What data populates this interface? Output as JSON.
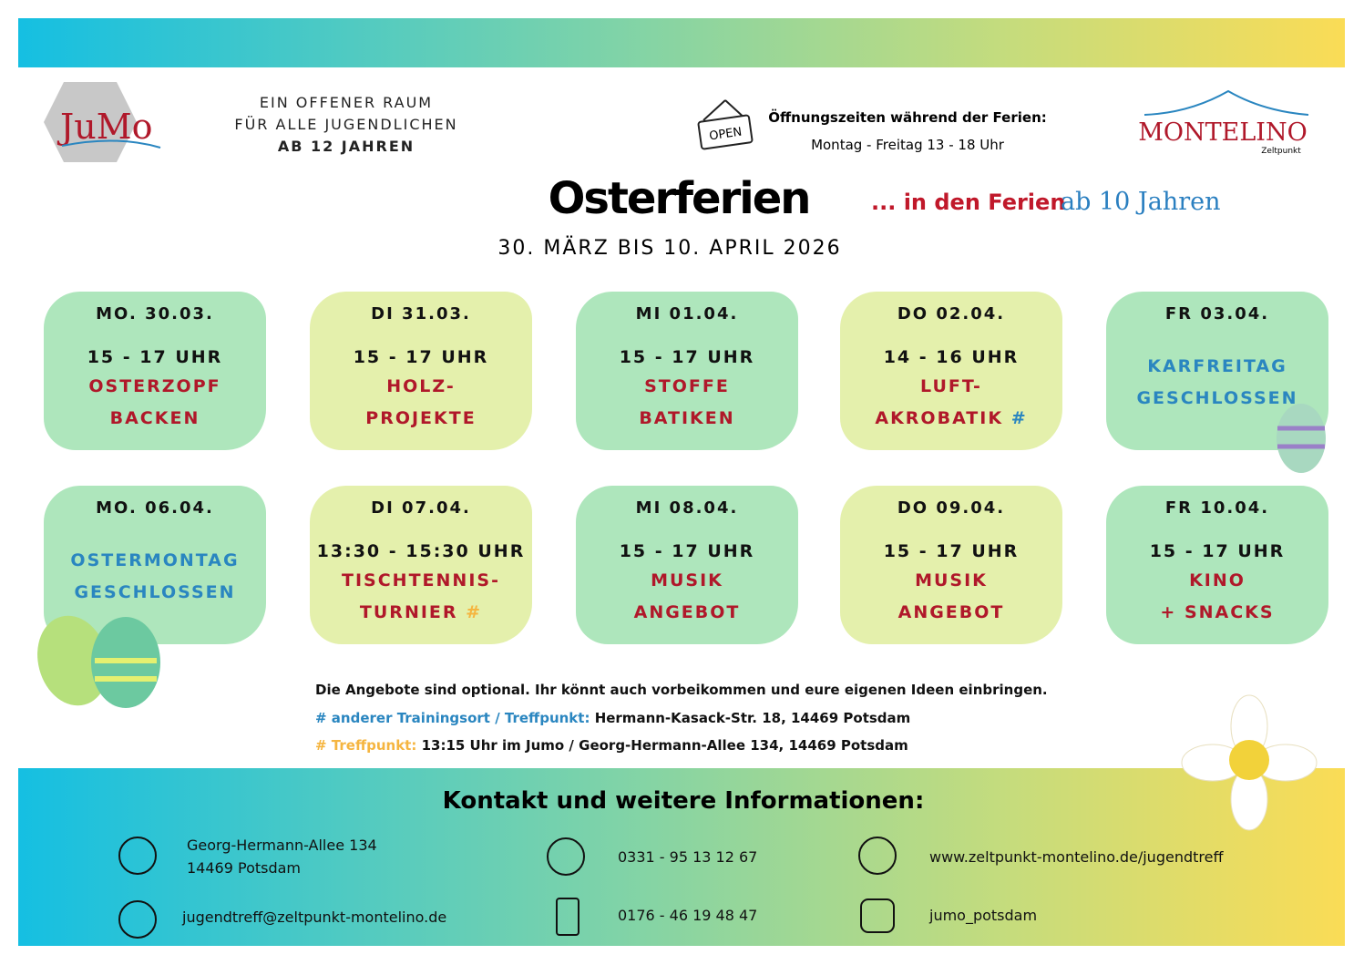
{
  "header": {
    "logo_left": "JuMo",
    "tagline": [
      "EIN OFFENER RAUM",
      "FÜR ALLE JUGENDLICHEN",
      "AB 12 JAHREN"
    ],
    "open_sign": "OPEN",
    "hours_title": "Öffnungszeiten während der Ferien:",
    "hours": "Montag - Freitag 13 - 18 Uhr",
    "logo_right": "MONTELINO",
    "logo_right_sub": "Zeltpunkt"
  },
  "title": "Osterferien",
  "dates": "30. MÄRZ BIS 10. APRIL 2026",
  "slogan": [
    "... in den Ferien",
    "ab 10 Jahren"
  ],
  "days": [
    {
      "date": "MO. 30.03.",
      "time": "15 - 17 UHR",
      "activity": [
        "OSTERZOPF",
        "BACKEN"
      ]
    },
    {
      "date": "DI 31.03.",
      "time": "15 - 17 UHR",
      "activity": [
        "HOLZ-",
        "PROJEKTE"
      ]
    },
    {
      "date": "MI 01.04.",
      "time": "15 - 17 UHR",
      "activity": [
        "STOFFE",
        "BATIKEN"
      ]
    },
    {
      "date": "DO 02.04.",
      "time": "14 - 16 UHR",
      "activity": [
        "LUFT-",
        "AKROBATIK"
      ],
      "marker": "#"
    },
    {
      "date": "FR 03.04.",
      "activity": [
        "KARFREITAG",
        "GESCHLOSSEN"
      ]
    },
    {
      "date": "MO. 06.04.",
      "activity": [
        "OSTERMONTAG",
        "GESCHLOSSEN"
      ]
    },
    {
      "date": "DI 07.04.",
      "time": "13:30 - 15:30 UHR",
      "activity": [
        "TISCHTENNIS-",
        "TURNIER"
      ],
      "marker": "#"
    },
    {
      "date": "MI 08.04.",
      "time": "15 - 17 UHR",
      "activity": [
        "MUSIK",
        "ANGEBOT"
      ]
    },
    {
      "date": "DO 09.04.",
      "time": "15 - 17  UHR",
      "activity": [
        "MUSIK",
        "ANGEBOT"
      ]
    },
    {
      "date": "FR 10.04.",
      "time": "15 - 17  UHR",
      "activity": [
        "KINO",
        "+ SNACKS"
      ]
    }
  ],
  "notes": {
    "intro": "Die Angebote sind optional. Ihr könnt auch vorbeikommen und eure eigenen Ideen einbringen.",
    "note1_label": "# anderer Trainingsort / Treffpunkt:",
    "note1_text": "Hermann-Kasack-Str. 18, 14469 Potsdam",
    "note2_label": "# Treffpunkt:",
    "note2_text": "13:15 Uhr im Jumo / Georg-Hermann-Allee 134, 14469 Potsdam"
  },
  "contact": {
    "heading": "Kontakt und weitere Informationen:",
    "address": [
      "Georg-Hermann-Allee 134",
      "14469 Potsdam"
    ],
    "email": "jugendtreff@zeltpunkt-montelino.de",
    "phone": "0331 - 95 13 12 67",
    "mobile": "0176 - 46 19 48 47",
    "web": "www.zeltpunkt-montelino.de/jugendtreff",
    "instagram": "jumo_potsdam"
  }
}
